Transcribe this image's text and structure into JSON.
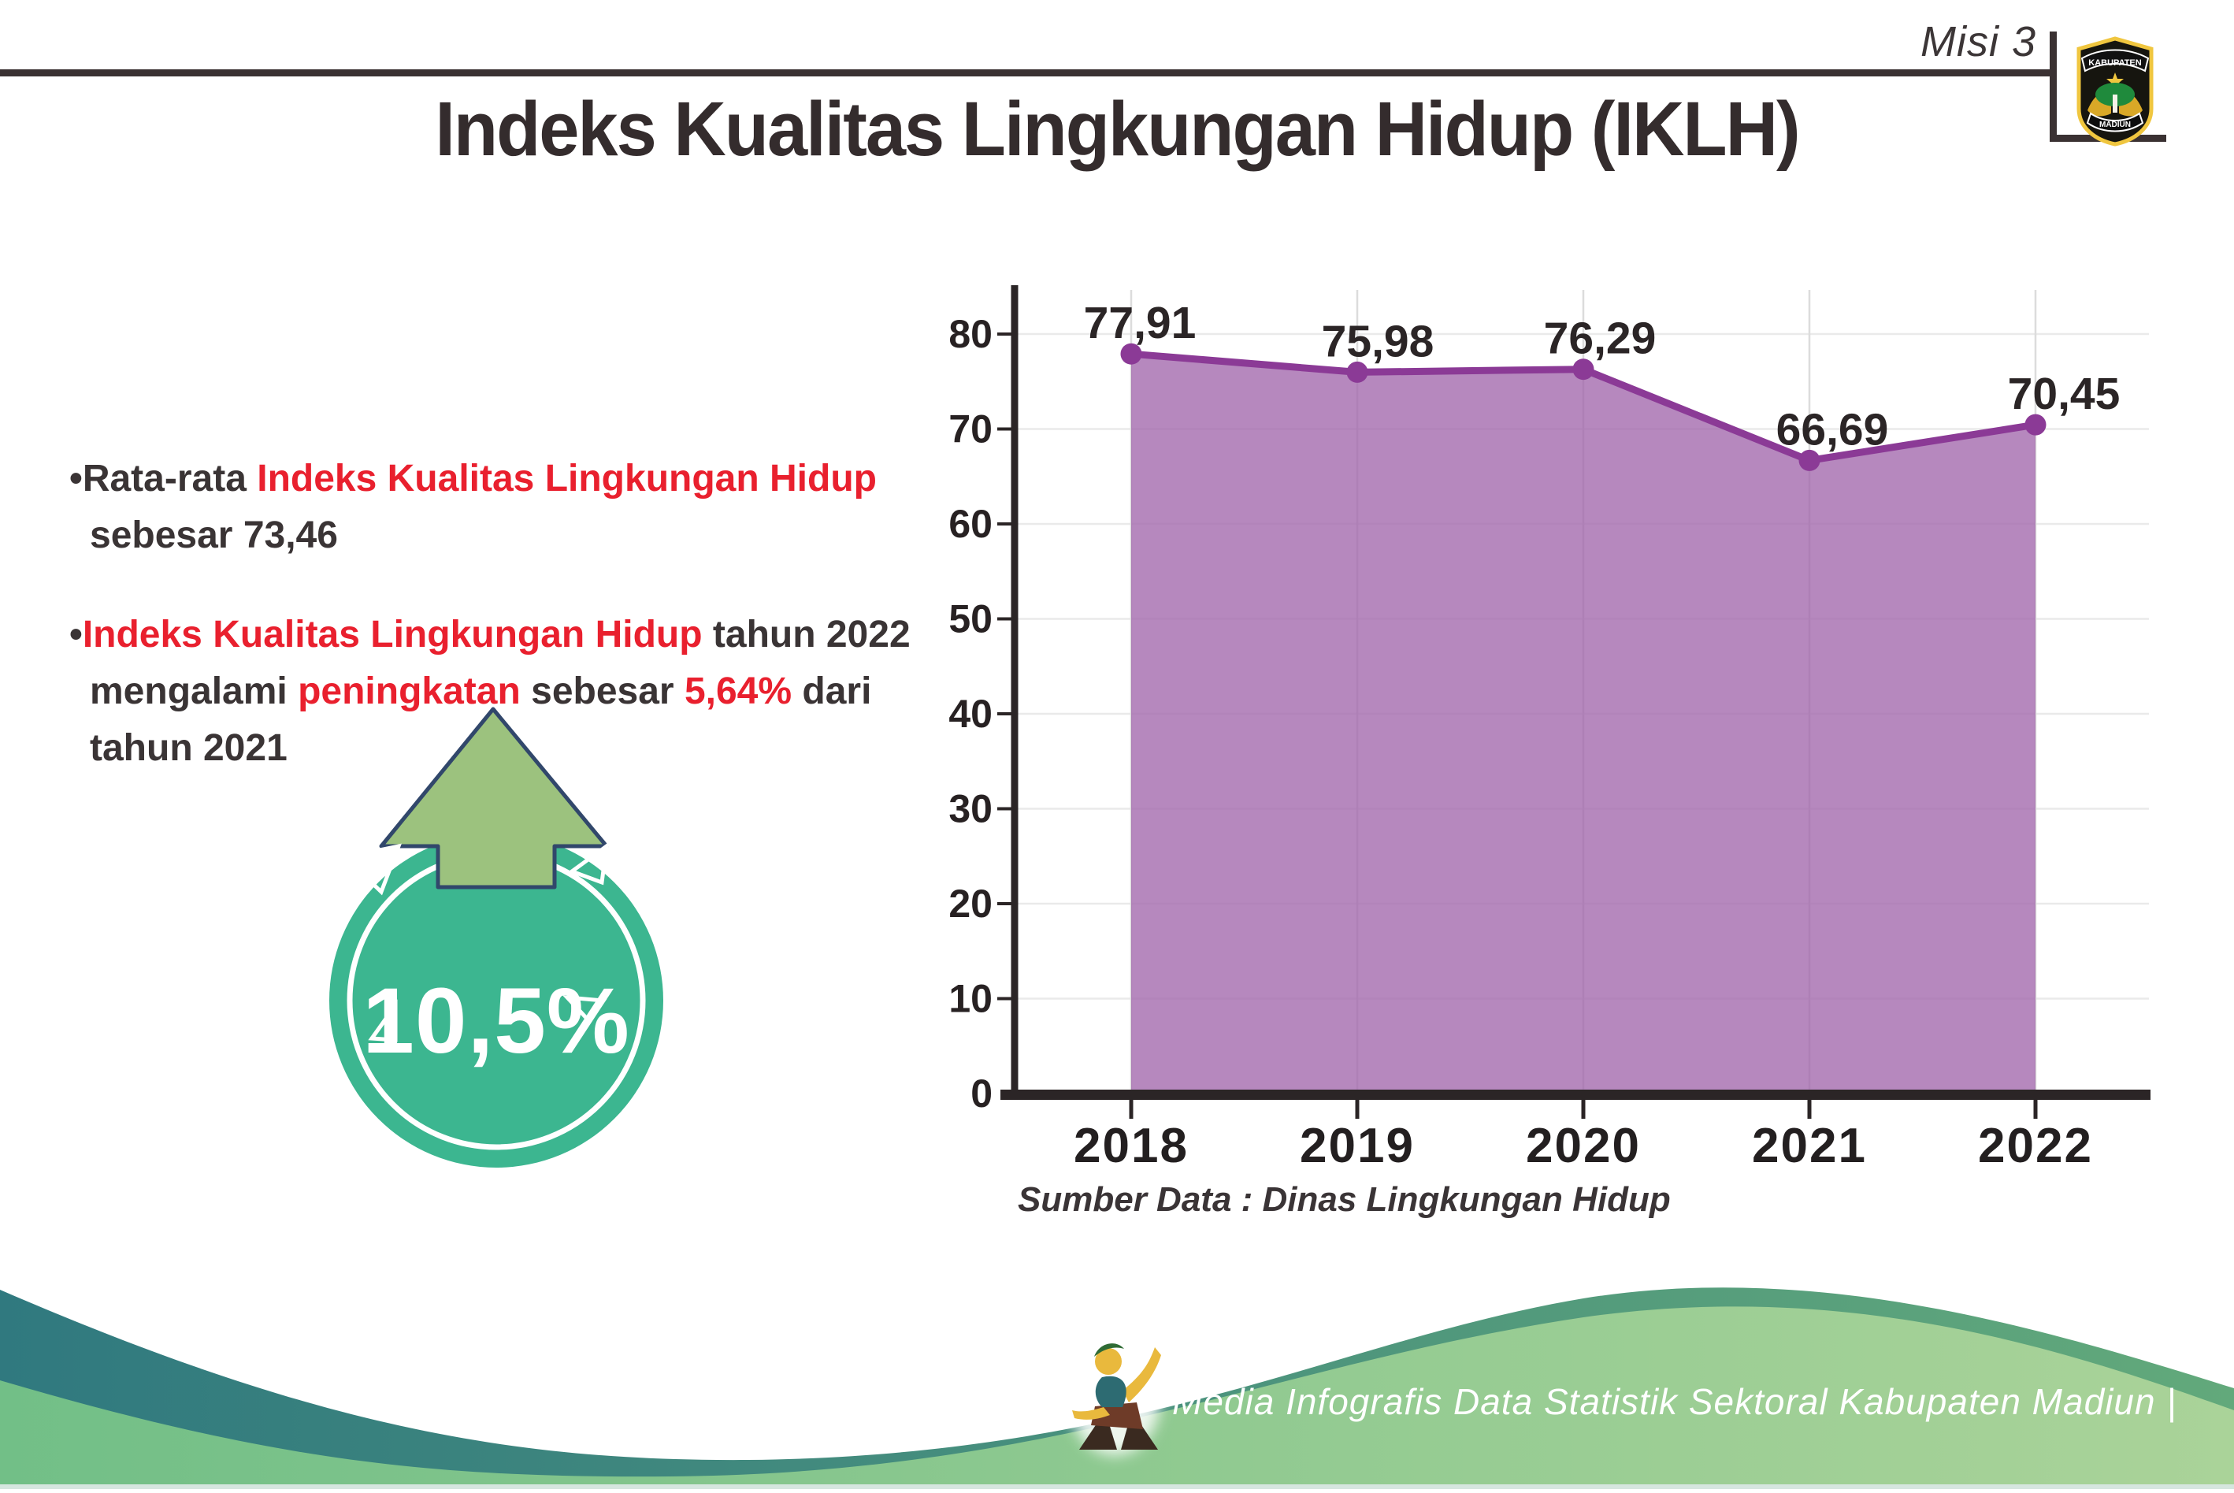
{
  "header": {
    "misi_label": "Misi 3",
    "logo": {
      "top_text": "KABUPATEN",
      "bottom_text": "MADIUN"
    }
  },
  "title": "Indeks Kualitas Lingkungan Hidup (IKLH)",
  "bullets": [
    {
      "marker": "•",
      "segments": [
        {
          "text": "Rata-rata ",
          "color": "dark"
        },
        {
          "text": "Indeks Kualitas Lingkungan Hidup",
          "color": "red"
        },
        {
          "br": true
        },
        {
          "text": "sebesar 73,46",
          "color": "dark"
        }
      ]
    },
    {
      "marker": "•",
      "segments": [
        {
          "text": "Indeks Kualitas Lingkungan Hidup",
          "color": "red"
        },
        {
          "text": " tahun 2022",
          "color": "dark"
        },
        {
          "br": true
        },
        {
          "text": "mengalami ",
          "color": "dark"
        },
        {
          "text": "peningkatan",
          "color": "red"
        },
        {
          "text": " sebesar ",
          "color": "dark"
        },
        {
          "text": "5,64%",
          "color": "red"
        },
        {
          "text": " dari",
          "color": "dark"
        },
        {
          "br": true
        },
        {
          "text": "tahun 2021",
          "color": "dark"
        }
      ]
    }
  ],
  "badge": {
    "value": "10,5%",
    "direction": "increase-up-arrow"
  },
  "chart_data": {
    "type": "area",
    "title": "",
    "categories": [
      "2018",
      "2019",
      "2020",
      "2021",
      "2022"
    ],
    "values": [
      77.91,
      75.98,
      76.29,
      66.69,
      70.45
    ],
    "value_labels": [
      "77,91",
      "75,98",
      "76,29",
      "66,69",
      "70,45"
    ],
    "xlabel": "",
    "ylabel": "",
    "ylim": [
      0,
      80
    ],
    "ytick_step": 10,
    "grid": true,
    "legend": "none",
    "source_note": "Sumber Data : Dinas Lingkungan Hidup"
  },
  "footer": {
    "credit_text": "Media Infografis Data Statistik Sektoral Kabupaten Madiun |"
  },
  "colors": {
    "text_dark": "#3a3435",
    "accent_red": "#e9202e",
    "chart_line": "#8b3a96",
    "chart_fill": "#a167ac",
    "badge_teal": "#3cb690",
    "arrow_green": "#9cc27e",
    "arrow_outline": "#31476b",
    "footer_teal_left": "#30797f",
    "footer_teal_right": "#62a97b",
    "footer_green_left": "#72bf87",
    "footer_green_right": "#aad399",
    "rule_dark": "#3a3132"
  }
}
